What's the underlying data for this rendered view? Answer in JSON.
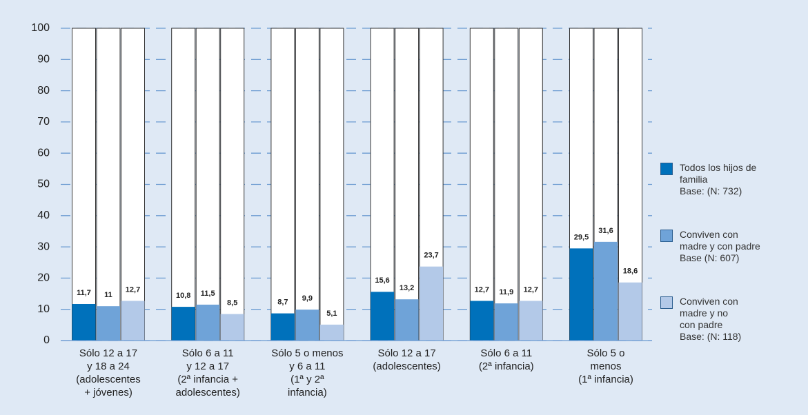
{
  "chart_data": {
    "type": "bar",
    "categories": [
      "Sólo 12 a 17\ny 18 a 24\n(adolescentes\n+ jóvenes)",
      "Sólo 6 a 11\ny 12 a 17\n(2ª infancia +\nadolescentes)",
      "Sólo 5 o menos\ny 6 a 11\n(1ª y 2ª\ninfancia)",
      "Sólo 12 a 17\n(adolescentes)",
      "Sólo 6 a 11\n(2ª infancia)",
      "Sólo 5 o\nmenos\n(1ª infancia)"
    ],
    "series": [
      {
        "name": "Todos los hijos de\nfamilia\nBase: (N: 732)",
        "color": "#0071bb",
        "values": [
          11.7,
          10.8,
          8.7,
          15.6,
          12.7,
          29.5
        ],
        "value_labels": [
          "11,7",
          "10,8",
          "8,7",
          "15,6",
          "12,7",
          "29,5"
        ]
      },
      {
        "name": "Conviven con\nmadre y con padre\nBase (N: 607)",
        "color": "#6fa3d8",
        "values": [
          11,
          11.5,
          9.9,
          13.2,
          11.9,
          31.6
        ],
        "value_labels": [
          "11",
          "11,5",
          "9,9",
          "13,2",
          "11,9",
          "31,6"
        ]
      },
      {
        "name": "Conviven con\nmadre y no\ncon padre\nBase: (N: 118)",
        "color": "#b3c9e8",
        "values": [
          12.7,
          8.5,
          5.1,
          23.7,
          12.7,
          18.6
        ],
        "value_labels": [
          "12,7",
          "8,5",
          "5,1",
          "23,7",
          "12,7",
          "18,6"
        ]
      }
    ],
    "ylim": [
      0,
      100
    ],
    "yticks": [
      0,
      10,
      20,
      30,
      40,
      50,
      60,
      70,
      80,
      90,
      100
    ],
    "grid": true,
    "legend": "right"
  }
}
